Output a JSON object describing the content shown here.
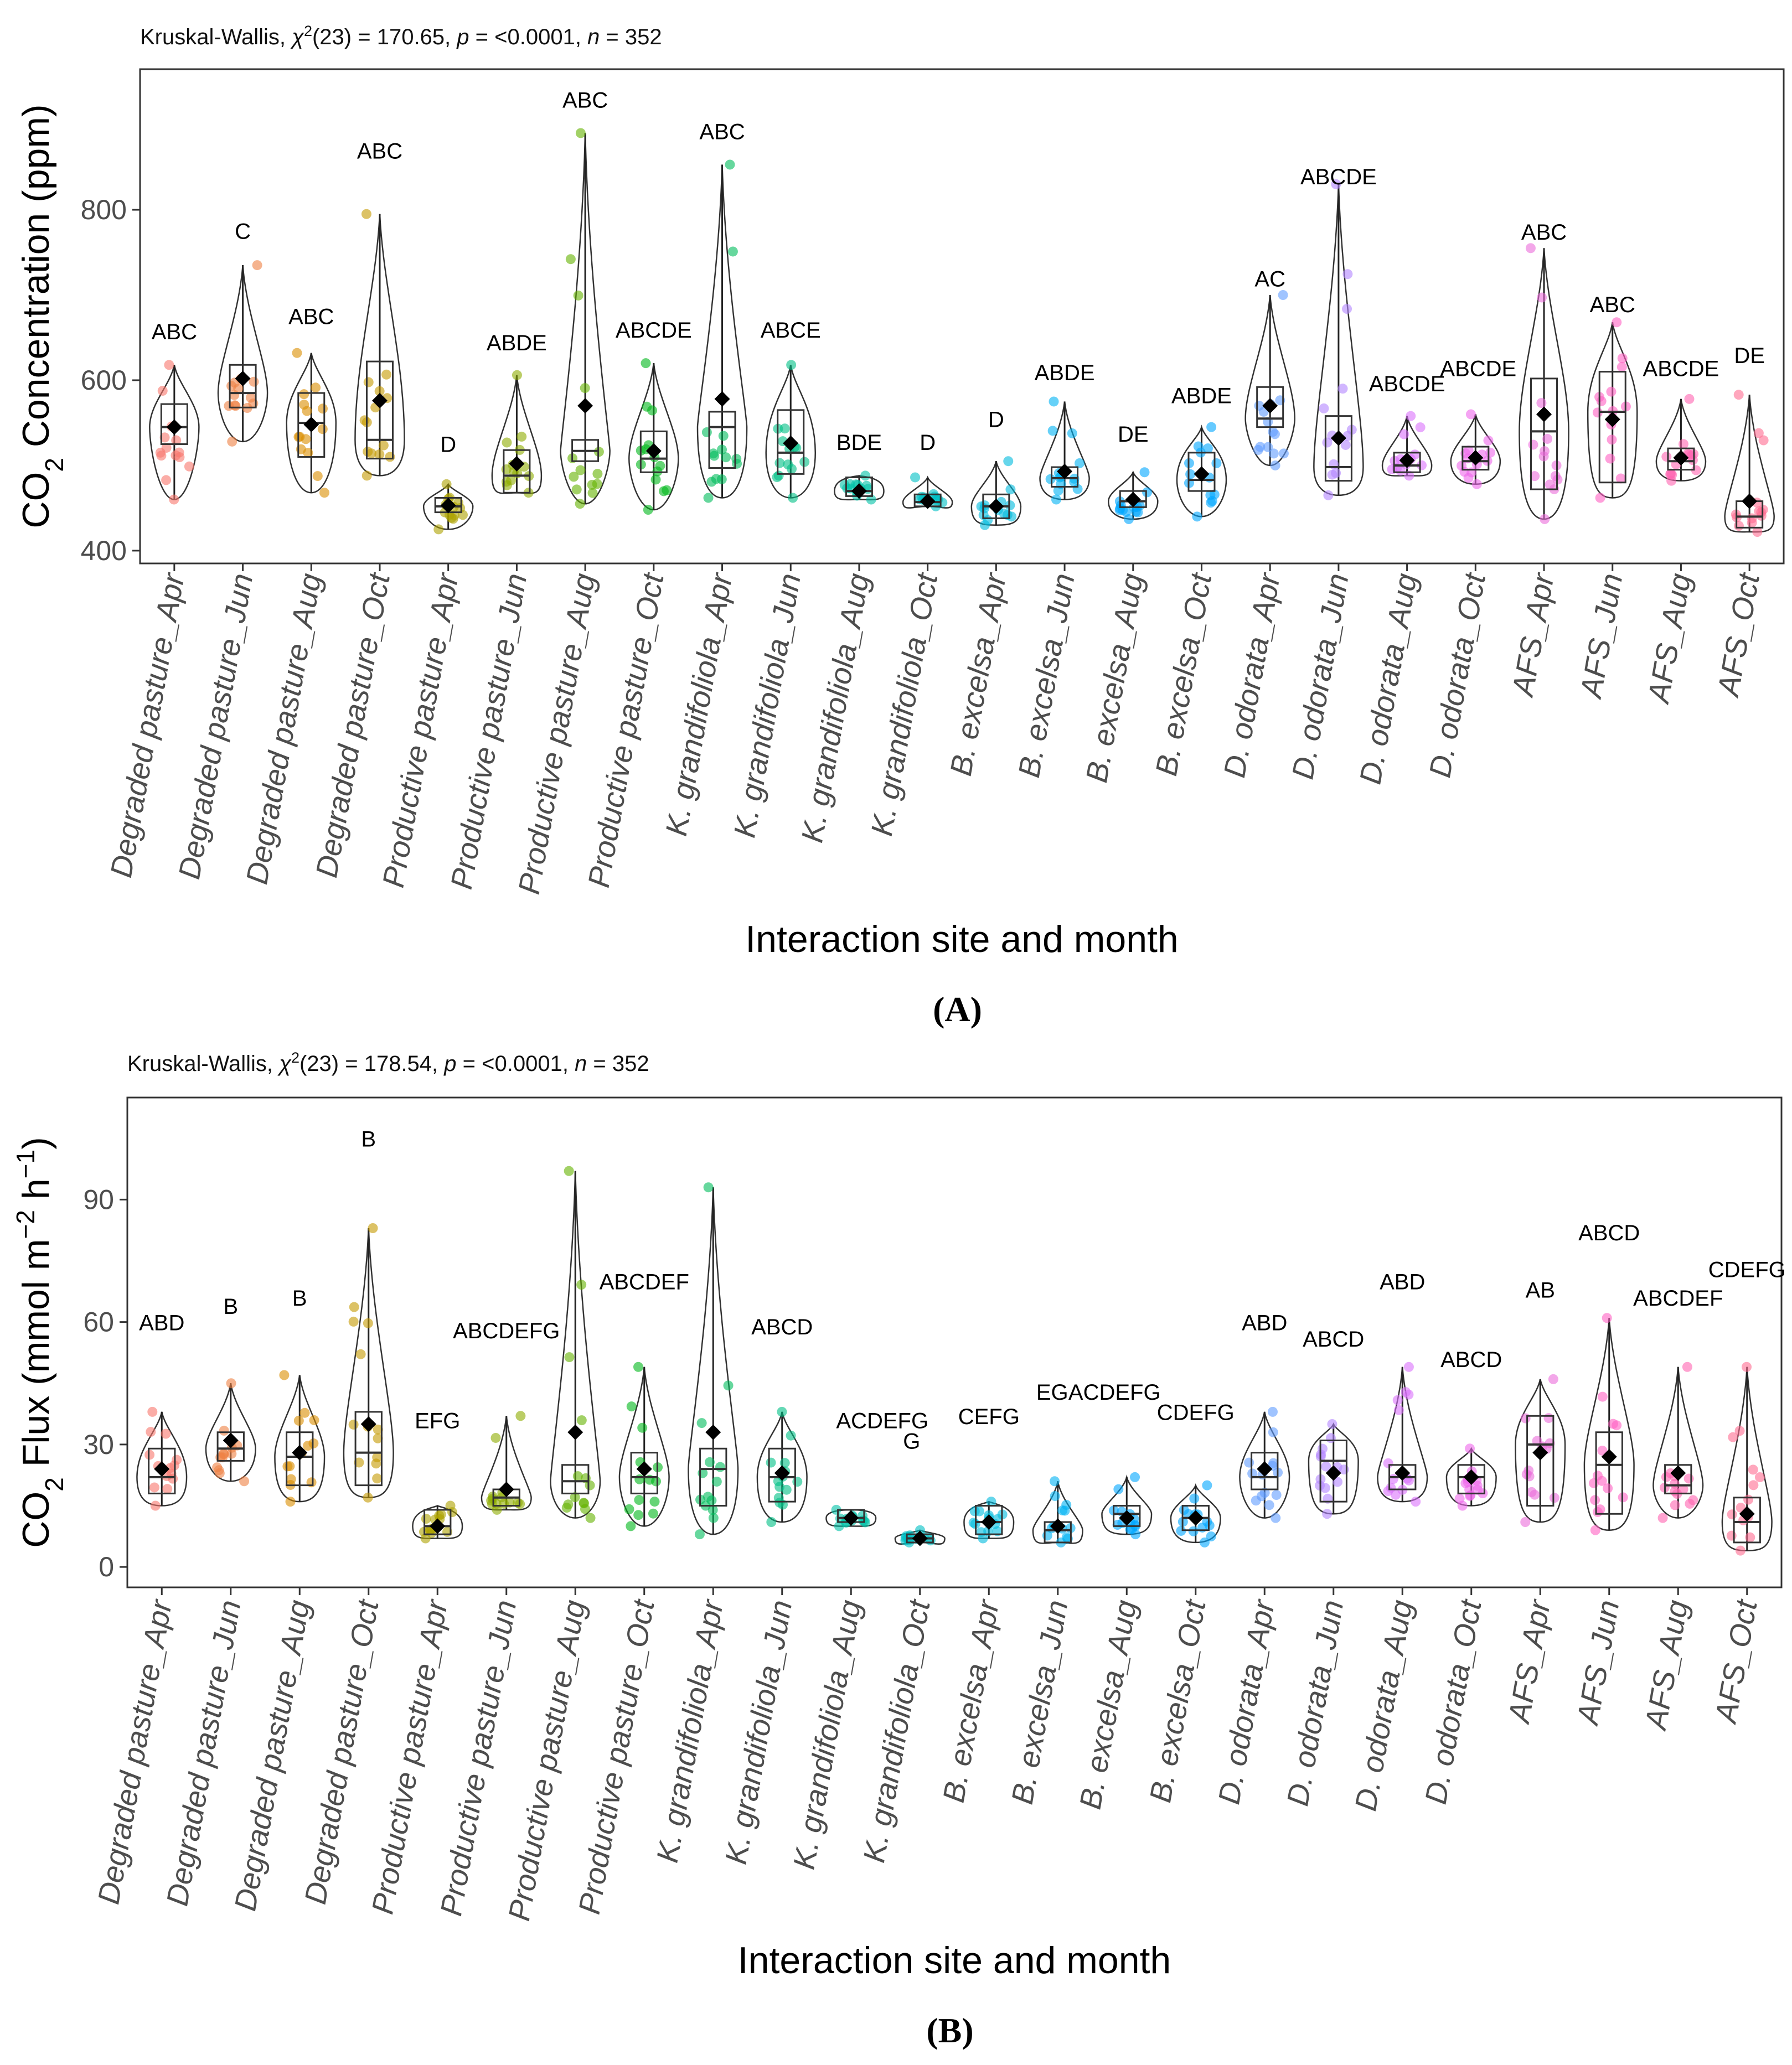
{
  "categories": [
    "Degraded pasture_Apr",
    "Degraded pasture_Jun",
    "Degraded pasture_Aug",
    "Degraded pasture_Oct",
    "Productive pasture_Apr",
    "Productive pasture_Jun",
    "Productive pasture_Aug",
    "Productive pasture_Oct",
    "K. grandifoliola_Apr",
    "K. grandifoliola_Jun",
    "K. grandifoliola_Aug",
    "K. grandifoliola_Oct",
    "B. excelsa_Apr",
    "B. excelsa_Jun",
    "B. excelsa_Aug",
    "B. excelsa_Oct",
    "D. odorata_Apr",
    "D. odorata_Jun",
    "D. odorata_Aug",
    "D. odorata_Oct",
    "AFS_Apr",
    "AFS_Jun",
    "AFS_Aug",
    "AFS_Oct"
  ],
  "colors": [
    "#F8766D",
    "#EE8043",
    "#DB8E00",
    "#C49A00",
    "#AEA200",
    "#8EAB00",
    "#64B200",
    "#00B81B",
    "#00BD5C",
    "#00C085",
    "#00C1A7",
    "#00BFC4",
    "#00BADE",
    "#00B2F3",
    "#00A6FF",
    "#00A6FF",
    "#619CFF",
    "#B385FF",
    "#DB72FB",
    "#EF67EB",
    "#EB6CDA",
    "#FF61C3",
    "#FF64B0",
    "#FF6C91"
  ],
  "chart_data": [
    {
      "panel": "(A)",
      "type": "box",
      "subtitle": "Kruskal-Wallis, χ²(23) = 170.65, p = <0.0001, n = 352",
      "subtitle_parts": [
        "Kruskal-Wallis, ",
        "χ",
        "2",
        "(23) = 170.65, ",
        "p",
        " = <0.0001, ",
        "n",
        " = 352"
      ],
      "ylabel": "CO2 Concentration (ppm)",
      "ylabel_parts": [
        "CO",
        "2",
        " Concentration (ppm)"
      ],
      "xlabel": "Interaction site and month",
      "ylim": [
        385,
        965
      ],
      "yticks": [
        400,
        600,
        800
      ],
      "grid": false,
      "boxes": [
        {
          "q1": 525,
          "median": 545,
          "q3": 572,
          "lo": 460,
          "hi": 618,
          "mean": 545
        },
        {
          "q1": 568,
          "median": 585,
          "q3": 618,
          "lo": 528,
          "hi": 735,
          "mean": 602
        },
        {
          "q1": 510,
          "median": 550,
          "q3": 585,
          "lo": 468,
          "hi": 632,
          "mean": 548
        },
        {
          "q1": 508,
          "median": 530,
          "q3": 622,
          "lo": 488,
          "hi": 795,
          "mean": 576
        },
        {
          "q1": 445,
          "median": 452,
          "q3": 462,
          "lo": 425,
          "hi": 478,
          "mean": 453
        },
        {
          "q1": 468,
          "median": 488,
          "q3": 518,
          "lo": 468,
          "hi": 606,
          "mean": 502
        },
        {
          "q1": 505,
          "median": 517,
          "q3": 530,
          "lo": 455,
          "hi": 890,
          "mean": 570
        },
        {
          "q1": 492,
          "median": 508,
          "q3": 540,
          "lo": 448,
          "hi": 620,
          "mean": 517
        },
        {
          "q1": 497,
          "median": 545,
          "q3": 563,
          "lo": 462,
          "hi": 853,
          "mean": 578
        },
        {
          "q1": 490,
          "median": 515,
          "q3": 565,
          "lo": 462,
          "hi": 618,
          "mean": 526
        },
        {
          "q1": 464,
          "median": 470,
          "q3": 486,
          "lo": 460,
          "hi": 488,
          "mean": 470
        },
        {
          "q1": 452,
          "median": 457,
          "q3": 466,
          "lo": 452,
          "hi": 486,
          "mean": 458
        },
        {
          "q1": 438,
          "median": 452,
          "q3": 466,
          "lo": 430,
          "hi": 505,
          "mean": 452
        },
        {
          "q1": 475,
          "median": 485,
          "q3": 498,
          "lo": 460,
          "hi": 575,
          "mean": 493
        },
        {
          "q1": 451,
          "median": 458,
          "q3": 470,
          "lo": 437,
          "hi": 492,
          "mean": 460
        },
        {
          "q1": 470,
          "median": 483,
          "q3": 515,
          "lo": 440,
          "hi": 545,
          "mean": 490
        },
        {
          "q1": 545,
          "median": 555,
          "q3": 592,
          "lo": 500,
          "hi": 700,
          "mean": 570
        },
        {
          "q1": 482,
          "median": 498,
          "q3": 558,
          "lo": 465,
          "hi": 830,
          "mean": 532
        },
        {
          "q1": 492,
          "median": 500,
          "q3": 515,
          "lo": 488,
          "hi": 558,
          "mean": 506
        },
        {
          "q1": 495,
          "median": 505,
          "q3": 522,
          "lo": 478,
          "hi": 560,
          "mean": 509
        },
        {
          "q1": 472,
          "median": 540,
          "q3": 602,
          "lo": 437,
          "hi": 755,
          "mean": 560
        },
        {
          "q1": 480,
          "median": 563,
          "q3": 610,
          "lo": 462,
          "hi": 668,
          "mean": 554
        },
        {
          "q1": 495,
          "median": 505,
          "q3": 520,
          "lo": 482,
          "hi": 578,
          "mean": 509
        },
        {
          "q1": 427,
          "median": 440,
          "q3": 458,
          "lo": 422,
          "hi": 583,
          "mean": 458
        }
      ],
      "letters": [
        {
          "text": "ABC",
          "y": 648
        },
        {
          "text": "C",
          "y": 766
        },
        {
          "text": "ABC",
          "y": 666
        },
        {
          "text": "ABC",
          "y": 860
        },
        {
          "text": "D",
          "y": 516
        },
        {
          "text": "ABDE",
          "y": 635
        },
        {
          "text": "ABC",
          "y": 920
        },
        {
          "text": "ABCDE",
          "y": 650
        },
        {
          "text": "ABC",
          "y": 883
        },
        {
          "text": "ABCE",
          "y": 650
        },
        {
          "text": "BDE",
          "y": 518
        },
        {
          "text": "D",
          "y": 518
        },
        {
          "text": "D",
          "y": 545
        },
        {
          "text": "ABDE",
          "y": 600
        },
        {
          "text": "DE",
          "y": 528
        },
        {
          "text": "ABDE",
          "y": 573
        },
        {
          "text": "AC",
          "y": 710
        },
        {
          "text": "ABCDE",
          "y": 830
        },
        {
          "text": "ABCDE",
          "y": 587
        },
        {
          "text": "ABCDE",
          "y": 605
        },
        {
          "text": "ABC",
          "y": 765
        },
        {
          "text": "ABC",
          "y": 680
        },
        {
          "text": "ABCDE",
          "y": 605
        },
        {
          "text": "DE",
          "y": 620
        }
      ]
    },
    {
      "panel": "(B)",
      "type": "box",
      "subtitle": "Kruskal-Wallis, χ²(23) = 178.54, p = <0.0001, n = 352",
      "subtitle_parts": [
        "Kruskal-Wallis, ",
        "χ",
        "2",
        "(23) = 178.54, ",
        "p",
        " = <0.0001, ",
        "n",
        " = 352"
      ],
      "ylabel": "CO2 Flux (mmol m−2 h−1)",
      "ylabel_parts": [
        "CO",
        "2",
        " Flux (mmol m",
        "−2",
        " h",
        "−1",
        ")"
      ],
      "xlabel": "Interaction site and month",
      "ylim": [
        -5,
        115
      ],
      "yticks": [
        0,
        30,
        60,
        90
      ],
      "grid": false,
      "boxes": [
        {
          "q1": 18,
          "median": 22,
          "q3": 29,
          "lo": 15,
          "hi": 38,
          "mean": 24
        },
        {
          "q1": 26,
          "median": 29,
          "q3": 33,
          "lo": 21,
          "hi": 45,
          "mean": 31
        },
        {
          "q1": 20,
          "median": 27,
          "q3": 33,
          "lo": 16,
          "hi": 47,
          "mean": 28
        },
        {
          "q1": 20,
          "median": 28,
          "q3": 38,
          "lo": 17,
          "hi": 83,
          "mean": 35
        },
        {
          "q1": 8,
          "median": 10,
          "q3": 14,
          "lo": 7,
          "hi": 15,
          "mean": 10
        },
        {
          "q1": 15,
          "median": 17,
          "q3": 19,
          "lo": 14,
          "hi": 37,
          "mean": 19
        },
        {
          "q1": 18,
          "median": 21,
          "q3": 25,
          "lo": 12,
          "hi": 97,
          "mean": 33
        },
        {
          "q1": 18,
          "median": 22,
          "q3": 28,
          "lo": 10,
          "hi": 49,
          "mean": 24
        },
        {
          "q1": 15,
          "median": 24,
          "q3": 29,
          "lo": 8,
          "hi": 93,
          "mean": 33
        },
        {
          "q1": 16,
          "median": 22,
          "q3": 29,
          "lo": 11,
          "hi": 38,
          "mean": 23
        },
        {
          "q1": 11,
          "median": 12,
          "q3": 14,
          "lo": 10,
          "hi": 14,
          "mean": 12
        },
        {
          "q1": 6,
          "median": 7,
          "q3": 8,
          "lo": 6,
          "hi": 9,
          "mean": 7
        },
        {
          "q1": 8,
          "median": 11,
          "q3": 15,
          "lo": 7,
          "hi": 16,
          "mean": 11
        },
        {
          "q1": 6,
          "median": 9,
          "q3": 11,
          "lo": 6,
          "hi": 21,
          "mean": 10
        },
        {
          "q1": 10,
          "median": 13,
          "q3": 15,
          "lo": 8,
          "hi": 22,
          "mean": 12
        },
        {
          "q1": 9,
          "median": 12,
          "q3": 15,
          "lo": 6,
          "hi": 20,
          "mean": 12
        },
        {
          "q1": 19,
          "median": 22,
          "q3": 28,
          "lo": 12,
          "hi": 38,
          "mean": 24
        },
        {
          "q1": 16,
          "median": 26,
          "q3": 31,
          "lo": 13,
          "hi": 35,
          "mean": 23
        },
        {
          "q1": 19,
          "median": 22,
          "q3": 25,
          "lo": 16,
          "hi": 49,
          "mean": 23
        },
        {
          "q1": 18,
          "median": 22,
          "q3": 25,
          "lo": 15,
          "hi": 29,
          "mean": 22
        },
        {
          "q1": 15,
          "median": 30,
          "q3": 37,
          "lo": 11,
          "hi": 46,
          "mean": 28
        },
        {
          "q1": 13,
          "median": 25,
          "q3": 33,
          "lo": 9,
          "hi": 61,
          "mean": 27
        },
        {
          "q1": 18,
          "median": 20,
          "q3": 25,
          "lo": 12,
          "hi": 49,
          "mean": 23
        },
        {
          "q1": 6,
          "median": 11,
          "q3": 17,
          "lo": 4,
          "hi": 49,
          "mean": 13
        }
      ],
      "letters": [
        {
          "text": "ABD",
          "y": 58
        },
        {
          "text": "B",
          "y": 62
        },
        {
          "text": "B",
          "y": 64
        },
        {
          "text": "B",
          "y": 103
        },
        {
          "text": "EFG",
          "y": 34
        },
        {
          "text": "ABCDEFG",
          "y": 56
        },
        {
          "text": "ABCDEF",
          "y": 68
        },
        {
          "text": "ABCD",
          "y": 57
        },
        {
          "text": "ACDEFG",
          "y": 34
        },
        {
          "text": "G",
          "y": 29
        },
        {
          "text": "CEFG",
          "y": 35
        },
        {
          "text": "EG",
          "y": 41
        },
        {
          "text": "ACDEFG",
          "y": 41
        },
        {
          "text": "CDEFG",
          "y": 36
        },
        {
          "text": "ABD",
          "y": 58
        },
        {
          "text": "ABCD",
          "y": 54
        },
        {
          "text": "ABD",
          "y": 68
        },
        {
          "text": "ABCD",
          "y": 49
        },
        {
          "text": "AB",
          "y": 66
        },
        {
          "text": "ABCD",
          "y": 80
        },
        {
          "text": "ABCDEF",
          "y": 64
        },
        {
          "text": "CDEFG",
          "y": 71
        }
      ],
      "letter_positions": [
        0,
        1,
        2,
        3,
        4,
        5,
        7,
        9,
        11,
        11,
        12,
        13,
        13,
        15,
        16,
        17,
        18,
        19,
        20,
        21,
        22,
        23
      ]
    }
  ]
}
